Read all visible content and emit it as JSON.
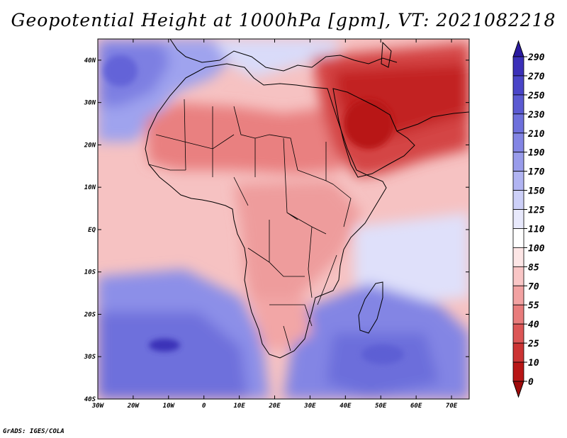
{
  "title": "Geopotential Height at 1000hPa [gpm], VT: 2021082218",
  "credit": "GrADS: IGES/COLA",
  "map": {
    "variable": "Geopotential Height",
    "level": "1000hPa",
    "units": "gpm",
    "valid_time": "2021082218",
    "lon_range": [
      -30,
      75
    ],
    "lat_range": [
      -40,
      45
    ],
    "lat_ticks": [
      "40N",
      "30N",
      "20N",
      "10N",
      "EQ",
      "10S",
      "20S",
      "30S",
      "40S"
    ],
    "lon_ticks": [
      "30W",
      "20W",
      "10W",
      "0",
      "10E",
      "20E",
      "30E",
      "40E",
      "50E",
      "60E",
      "70E"
    ]
  },
  "colorbar": {
    "levels": [
      "290",
      "270",
      "250",
      "230",
      "210",
      "190",
      "170",
      "150",
      "125",
      "110",
      "100",
      "85",
      "70",
      "55",
      "40",
      "25",
      "10",
      "0"
    ],
    "colors": [
      "#2a1aa0",
      "#3b30b8",
      "#4a45c8",
      "#5b5ad2",
      "#6e70dc",
      "#8385e4",
      "#999ceb",
      "#b1b4f2",
      "#cdd0f8",
      "#e8e9fc",
      "#ffffff",
      "#fde6e6",
      "#f9c6c6",
      "#f2a2a2",
      "#e87c7c",
      "#dc5656",
      "#cc3434",
      "#b81616",
      "#9e0a0a"
    ]
  },
  "regions": [
    {
      "name": "south-atlantic-low-heights",
      "color": "#6e70dc"
    },
    {
      "name": "deep-low-center",
      "color": "#3b30b8"
    },
    {
      "name": "south-indian-low-heights",
      "color": "#8385e4"
    },
    {
      "name": "sahara-high-heights",
      "color": "#e87c7c"
    },
    {
      "name": "arabia-high-heights",
      "color": "#cc3434"
    },
    {
      "name": "iran-high-heights",
      "color": "#b81616"
    }
  ]
}
